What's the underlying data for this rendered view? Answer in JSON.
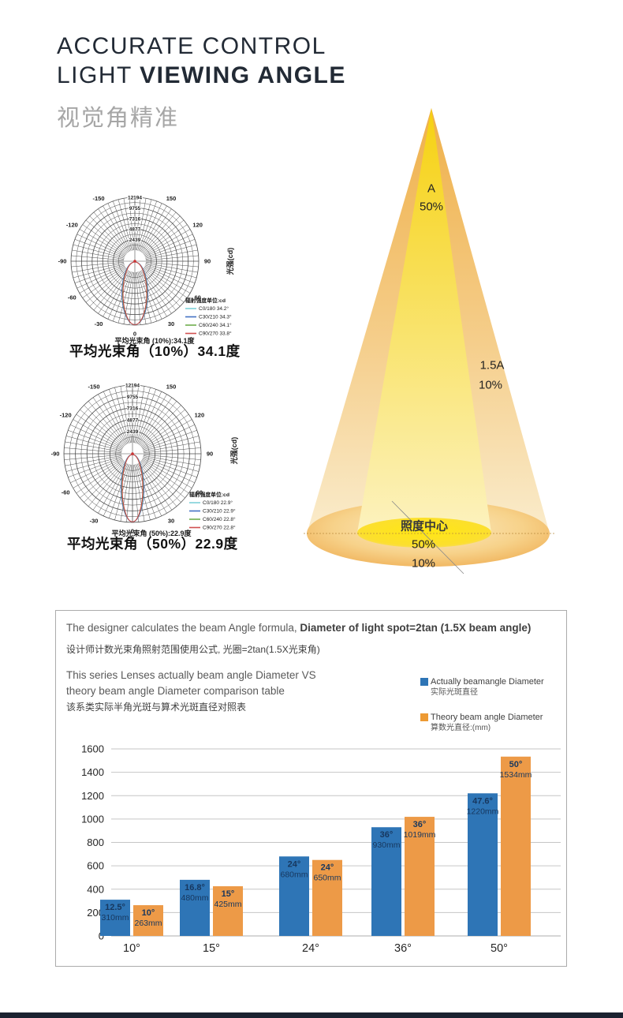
{
  "header": {
    "line1": "ACCURATE CONTROL",
    "line2_light": "LIGHT ",
    "line2_bold": "VIEWING ANGLE",
    "subtitle_cn": "视觉角精准"
  },
  "polar_diagrams": [
    {
      "rings": [
        "2439",
        "4877",
        "7316",
        "9755",
        "12194"
      ],
      "angle_ticks": [
        "-150",
        "-120",
        "-90",
        "-60",
        "-30",
        "0",
        "30",
        "60",
        "90",
        "120",
        "150"
      ],
      "axis_label": "光强(cd)",
      "legend_title": "辐射强度单位:cd",
      "legend": [
        {
          "label": "C0/180  34.2°",
          "color": "#7fd0d8"
        },
        {
          "label": "C30/210  34.3°",
          "color": "#4472c4"
        },
        {
          "label": "C60/240  34.1°",
          "color": "#6fae4e"
        },
        {
          "label": "C90/270  33.8°",
          "color": "#d05050"
        }
      ],
      "footnote": "平均光束角 (10%):34.1度",
      "caption": "平均光束角（10%）34.1度"
    },
    {
      "rings": [
        "2439",
        "4877",
        "7316",
        "9755",
        "12194"
      ],
      "angle_ticks": [
        "-150",
        "-120",
        "-90",
        "-60",
        "-30",
        "0",
        "30",
        "60",
        "90",
        "120",
        "150"
      ],
      "axis_label": "光强(cd)",
      "legend_title": "辐射强度单位:cd",
      "legend": [
        {
          "label": "C0/180  22.9°",
          "color": "#7fd0d8"
        },
        {
          "label": "C30/210  22.9°",
          "color": "#4472c4"
        },
        {
          "label": "C60/240  22.8°",
          "color": "#6fae4e"
        },
        {
          "label": "C90/270  22.8°",
          "color": "#d05050"
        }
      ],
      "footnote": "平均光束角 (50%):22.9度",
      "caption": "平均光束角（50%）22.9度"
    }
  ],
  "beam_illustration": {
    "label_a": "A",
    "label_a_pct": "50%",
    "label_b": "1.5A",
    "label_b_pct": "10%",
    "spot_center": "照度中心",
    "spot_50": "50%",
    "spot_10": "10%",
    "colors": {
      "inner_top": "#f6d110",
      "inner_bottom": "#fcf2bf",
      "outer_top": "#efb04a",
      "outer_bottom": "#faeccc",
      "spot_inner": "#ffe713",
      "spot_outer_edge": "#efaf55",
      "spot_outer_center": "#fbebc4"
    }
  },
  "info_box": {
    "formula_en_regular": "The designer calculates the beam Angle formula, ",
    "formula_en_bold": "Diameter of light spot=2tan (1.5X beam angle)",
    "formula_cn": "设计师计数光束角照射范围使用公式, 光圈=2tan(1.5X光束角)",
    "desc_en_line1": "This series Lenses actually beam angle Diameter VS",
    "desc_en_line2": "theory beam angle Diameter comparison table",
    "desc_cn": "该系类实际半角光斑与算术光斑直径对照表",
    "legend": [
      {
        "color": "#2e75b6",
        "label_en": "Actually beamangle Diameter",
        "label_cn": "实际光斑直径"
      },
      {
        "color": "#ed9a33",
        "label_en": "Theory beam angle Diameter",
        "label_cn": "算数光直径:(mm)"
      }
    ]
  },
  "chart_data": {
    "type": "bar",
    "categories": [
      "10°",
      "15°",
      "24°",
      "36°",
      "50°"
    ],
    "series": [
      {
        "name": "Actually beamangle Diameter",
        "color": "#2e75b6",
        "values": [
          310,
          480,
          680,
          930,
          1220
        ],
        "bar_labels": [
          [
            "12.5°",
            "310mm"
          ],
          [
            "16.8°",
            "480mm"
          ],
          [
            "24°",
            "680mm"
          ],
          [
            "36°",
            "930mm"
          ],
          [
            "47.6°",
            "1220mm"
          ]
        ]
      },
      {
        "name": "Theory beam angle Diameter",
        "color": "#ed9a47",
        "values": [
          263,
          425,
          650,
          1019,
          1534
        ],
        "bar_labels": [
          [
            "10°",
            "263mm"
          ],
          [
            "15°",
            "425mm"
          ],
          [
            "24°",
            "650mm"
          ],
          [
            "36°",
            "1019mm"
          ],
          [
            "50°",
            "1534mm"
          ]
        ]
      }
    ],
    "ylim": [
      0,
      1600
    ],
    "ytick_step": 200,
    "grid": true,
    "legend_position": "top-right",
    "label_color": "#17375e",
    "grid_color": "#c6c6c6"
  }
}
